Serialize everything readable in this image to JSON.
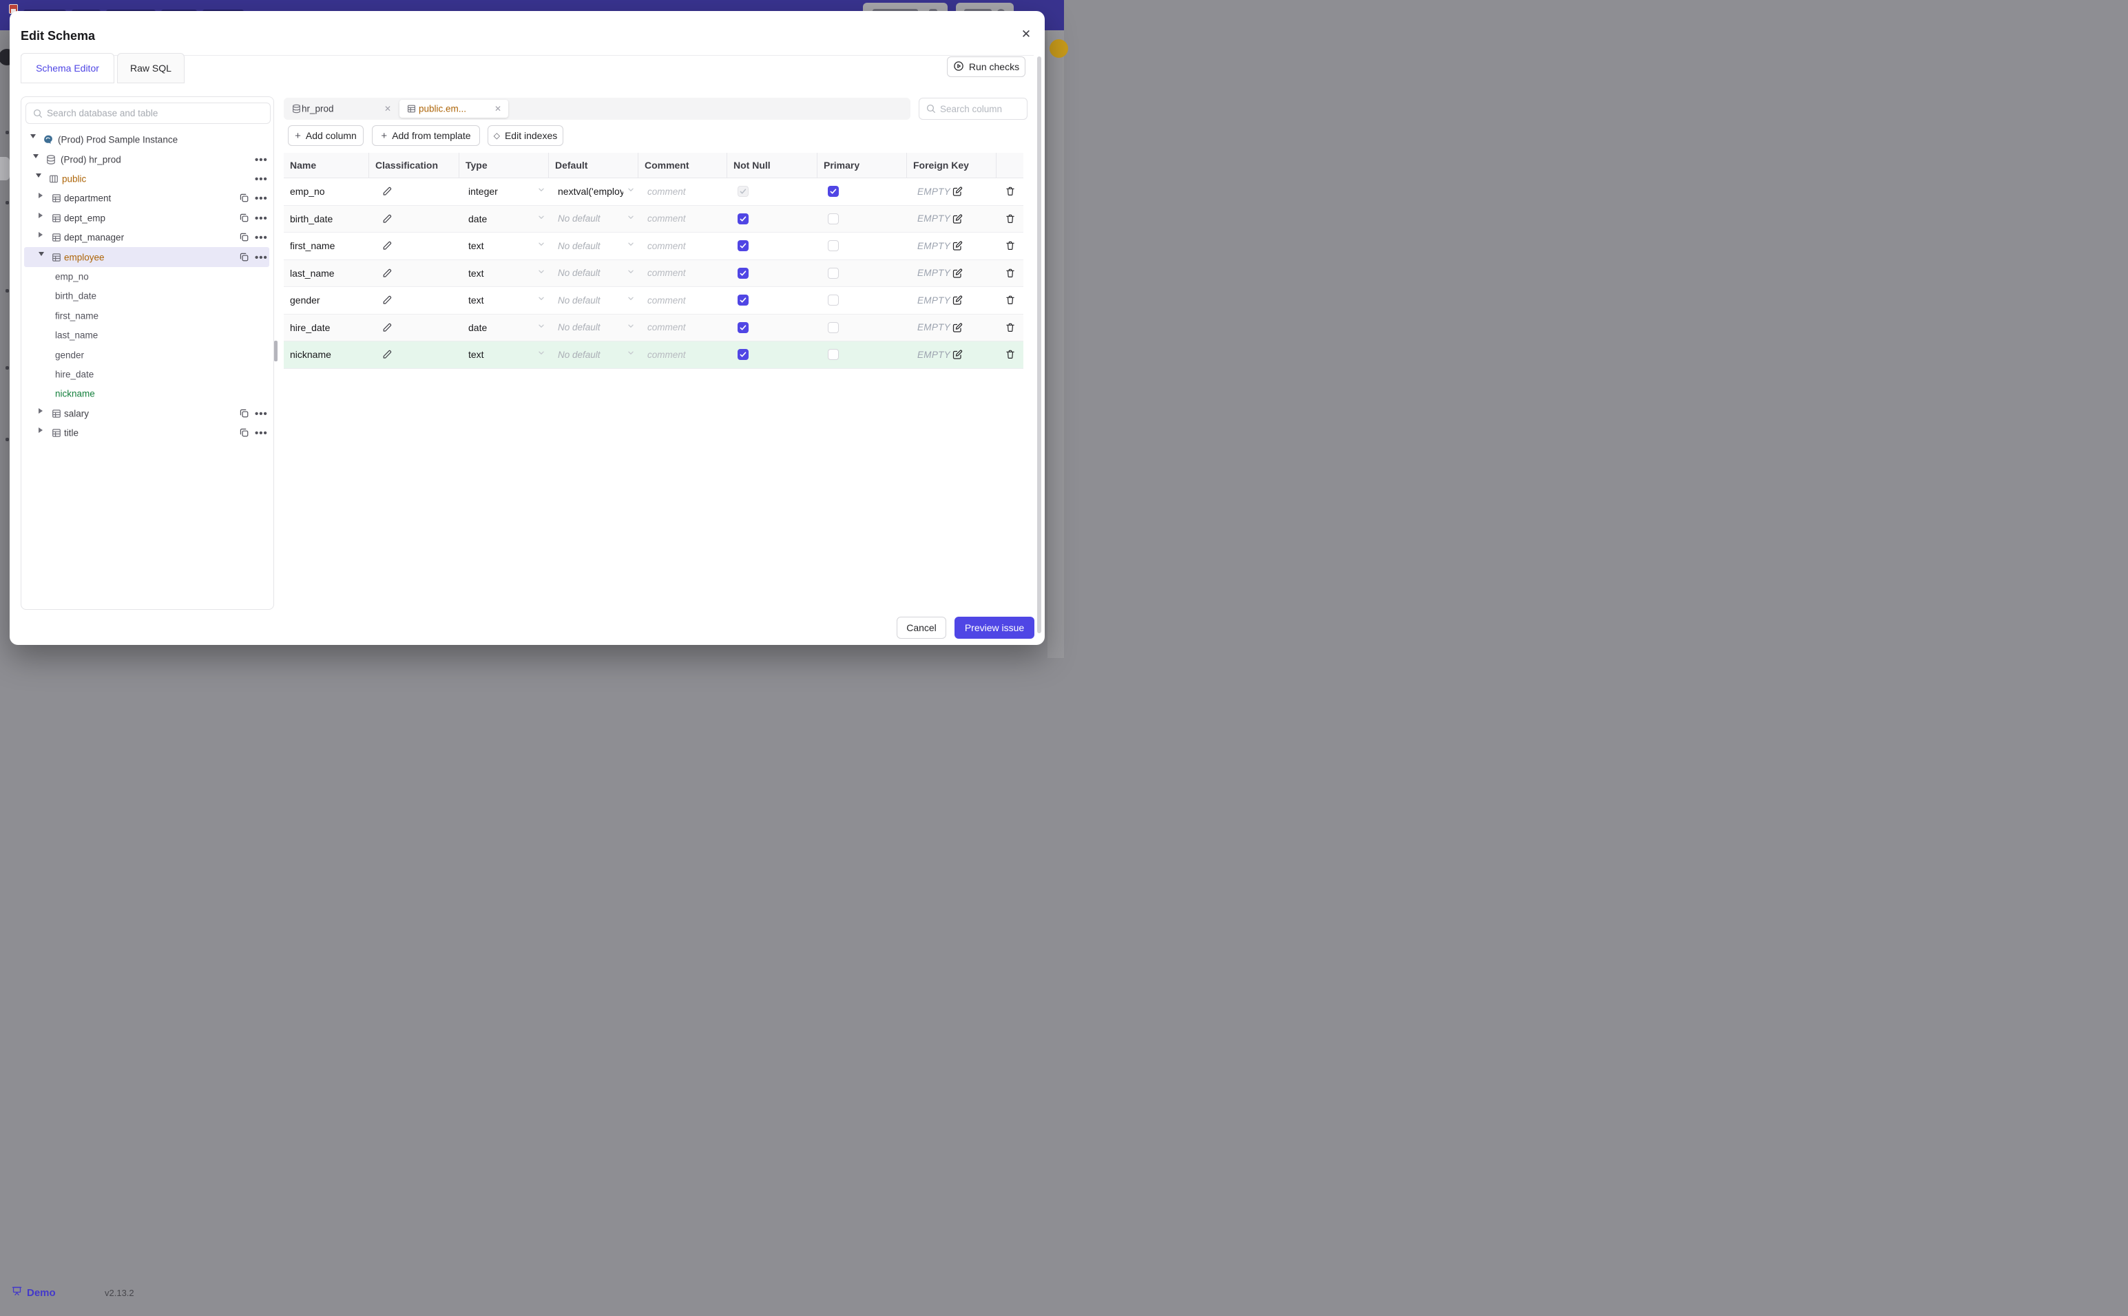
{
  "page_background": {
    "demo_label": "Demo",
    "version": "v2.13.2"
  },
  "modal": {
    "title": "Edit Schema",
    "close_glyph": "✕",
    "tabs": [
      {
        "label": "Schema Editor",
        "active": true
      },
      {
        "label": "Raw SQL",
        "active": false
      }
    ],
    "run_checks_label": "Run checks",
    "sidebar": {
      "search_placeholder": "Search database and table",
      "tree": [
        {
          "label": "(Prod) Prod Sample Instance",
          "depth": 0,
          "icon": "postgresql-icon",
          "chevron": "down",
          "actions": []
        },
        {
          "label": "(Prod) hr_prod",
          "depth": 1,
          "icon": "database-icon",
          "chevron": "down",
          "actions": [
            "more"
          ]
        },
        {
          "label": "public",
          "depth": 2,
          "icon": "schema-icon",
          "chevron": "down",
          "color": "amber",
          "actions": [
            "more"
          ]
        },
        {
          "label": "department",
          "depth": 3,
          "icon": "table-icon",
          "chevron": "right",
          "actions": [
            "copy",
            "more"
          ]
        },
        {
          "label": "dept_emp",
          "depth": 3,
          "icon": "table-icon",
          "chevron": "right",
          "actions": [
            "copy",
            "more"
          ]
        },
        {
          "label": "dept_manager",
          "depth": 3,
          "icon": "table-icon",
          "chevron": "right",
          "actions": [
            "copy",
            "more"
          ]
        },
        {
          "label": "employee",
          "depth": 3,
          "icon": "table-icon",
          "chevron": "down",
          "color": "amber",
          "selected": true,
          "actions": [
            "copy",
            "more"
          ]
        },
        {
          "label": "emp_no",
          "depth": 4
        },
        {
          "label": "birth_date",
          "depth": 4
        },
        {
          "label": "first_name",
          "depth": 4
        },
        {
          "label": "last_name",
          "depth": 4
        },
        {
          "label": "gender",
          "depth": 4
        },
        {
          "label": "hire_date",
          "depth": 4
        },
        {
          "label": "nickname",
          "depth": 4,
          "color": "green"
        },
        {
          "label": "salary",
          "depth": 3,
          "icon": "table-icon",
          "chevron": "right",
          "actions": [
            "copy",
            "more"
          ]
        },
        {
          "label": "title",
          "depth": 3,
          "icon": "table-icon",
          "chevron": "right",
          "actions": [
            "copy",
            "more"
          ]
        }
      ]
    },
    "editor": {
      "tabs": [
        {
          "label": "hr_prod",
          "icon": "database-icon",
          "active": false
        },
        {
          "label": "public.em...",
          "icon": "table-icon",
          "active": true
        }
      ],
      "search_placeholder": "Search column",
      "toolbar": [
        {
          "label": "Add column",
          "icon": "plus-icon"
        },
        {
          "label": "Add from template",
          "icon": "plus-icon"
        },
        {
          "label": "Edit indexes",
          "icon": "diamond-icon"
        }
      ],
      "table": {
        "headers": [
          "Name",
          "Classification",
          "Type",
          "Default",
          "Comment",
          "Not Null",
          "Primary",
          "Foreign Key"
        ],
        "comment_placeholder": "comment",
        "no_default_label": "No default",
        "empty_label": "EMPTY",
        "rows": [
          {
            "name": "emp_no",
            "type": "integer",
            "default": "nextval('employ",
            "not_null": true,
            "not_null_disabled": true,
            "primary": true
          },
          {
            "name": "birth_date",
            "type": "date",
            "default": null,
            "not_null": true,
            "not_null_disabled": false,
            "primary": false
          },
          {
            "name": "first_name",
            "type": "text",
            "default": null,
            "not_null": true,
            "not_null_disabled": false,
            "primary": false
          },
          {
            "name": "last_name",
            "type": "text",
            "default": null,
            "not_null": true,
            "not_null_disabled": false,
            "primary": false
          },
          {
            "name": "gender",
            "type": "text",
            "default": null,
            "not_null": true,
            "not_null_disabled": false,
            "primary": false
          },
          {
            "name": "hire_date",
            "type": "date",
            "default": null,
            "not_null": true,
            "not_null_disabled": false,
            "primary": false
          },
          {
            "name": "nickname",
            "type": "text",
            "default": null,
            "not_null": true,
            "not_null_disabled": false,
            "primary": false,
            "highlight": "green"
          }
        ]
      }
    },
    "footer": {
      "cancel_label": "Cancel",
      "submit_label": "Preview issue"
    }
  },
  "colors": {
    "accent": "#4f46e5",
    "checkbox_checked": "#5046e4",
    "amber_text": "#ad6509",
    "green_text": "#15803d",
    "green_row_bg": "#e6f6ec",
    "selected_tree_bg": "#e9e8f7",
    "navbar_bg": "#39338f"
  }
}
